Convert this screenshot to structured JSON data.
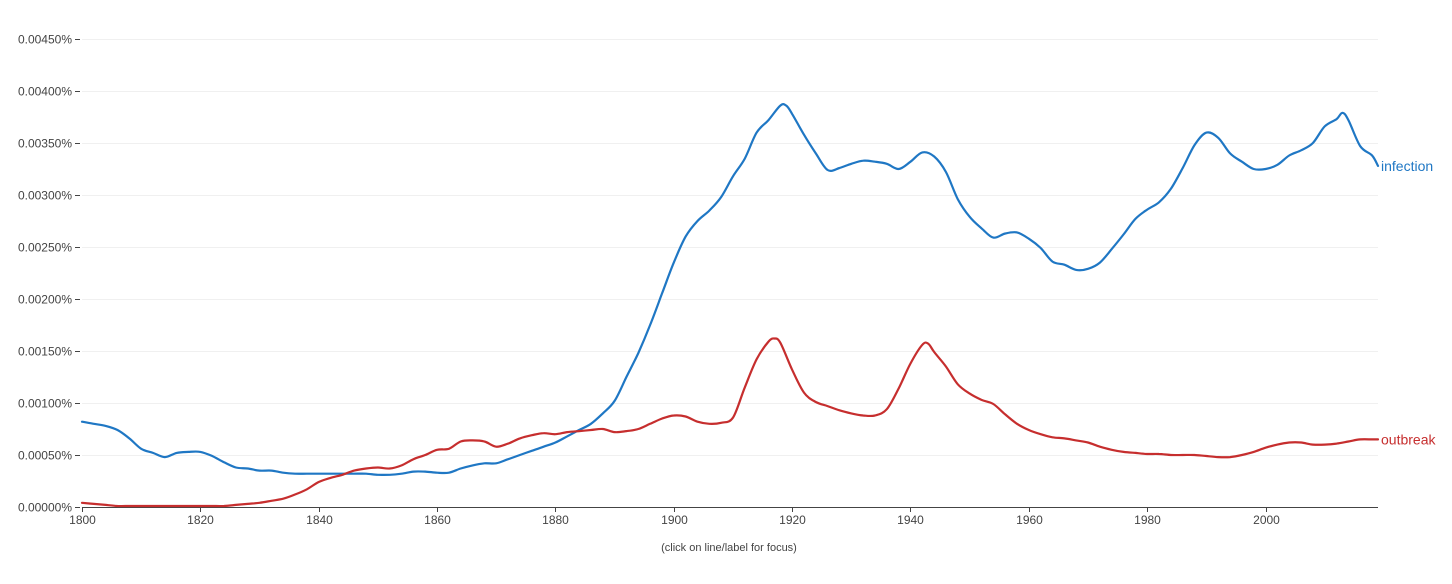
{
  "chart_data": {
    "type": "line",
    "x_range": [
      1800,
      2019
    ],
    "ylim": [
      0,
      0.0045
    ],
    "y_unit": "%",
    "y_ticks": [
      {
        "value": 0.0,
        "label": "0.00000%"
      },
      {
        "value": 0.0005,
        "label": "0.00050%"
      },
      {
        "value": 0.001,
        "label": "0.00100%"
      },
      {
        "value": 0.0015,
        "label": "0.00150%"
      },
      {
        "value": 0.002,
        "label": "0.00200%"
      },
      {
        "value": 0.0025,
        "label": "0.00250%"
      },
      {
        "value": 0.003,
        "label": "0.00300%"
      },
      {
        "value": 0.0035,
        "label": "0.00350%"
      },
      {
        "value": 0.004,
        "label": "0.00400%"
      },
      {
        "value": 0.0045,
        "label": "0.00450%"
      }
    ],
    "x_ticks": [
      {
        "value": 1800,
        "label": "1800"
      },
      {
        "value": 1820,
        "label": "1820"
      },
      {
        "value": 1840,
        "label": "1840"
      },
      {
        "value": 1860,
        "label": "1860"
      },
      {
        "value": 1880,
        "label": "1880"
      },
      {
        "value": 1900,
        "label": "1900"
      },
      {
        "value": 1920,
        "label": "1920"
      },
      {
        "value": 1940,
        "label": "1940"
      },
      {
        "value": 1960,
        "label": "1960"
      },
      {
        "value": 1980,
        "label": "1980"
      },
      {
        "value": 2000,
        "label": "2000"
      }
    ],
    "grid": true,
    "footnote": "(click on line/label for focus)",
    "series": [
      {
        "name": "infection",
        "color": "#1f77c4",
        "points": [
          [
            1800,
            0.00082
          ],
          [
            1802,
            0.0008
          ],
          [
            1804,
            0.00078
          ],
          [
            1806,
            0.00074
          ],
          [
            1808,
            0.00066
          ],
          [
            1810,
            0.00056
          ],
          [
            1812,
            0.00052
          ],
          [
            1814,
            0.00048
          ],
          [
            1816,
            0.00052
          ],
          [
            1818,
            0.00053
          ],
          [
            1820,
            0.00053
          ],
          [
            1822,
            0.00049
          ],
          [
            1824,
            0.00043
          ],
          [
            1826,
            0.00038
          ],
          [
            1828,
            0.00037
          ],
          [
            1830,
            0.00035
          ],
          [
            1832,
            0.00035
          ],
          [
            1834,
            0.00033
          ],
          [
            1836,
            0.00032
          ],
          [
            1838,
            0.00032
          ],
          [
            1840,
            0.00032
          ],
          [
            1842,
            0.00032
          ],
          [
            1844,
            0.00032
          ],
          [
            1846,
            0.00032
          ],
          [
            1848,
            0.00032
          ],
          [
            1850,
            0.00031
          ],
          [
            1852,
            0.00031
          ],
          [
            1854,
            0.00032
          ],
          [
            1856,
            0.00034
          ],
          [
            1858,
            0.00034
          ],
          [
            1860,
            0.00033
          ],
          [
            1862,
            0.00033
          ],
          [
            1864,
            0.00037
          ],
          [
            1866,
            0.0004
          ],
          [
            1868,
            0.00042
          ],
          [
            1870,
            0.00042
          ],
          [
            1872,
            0.00046
          ],
          [
            1874,
            0.0005
          ],
          [
            1876,
            0.00054
          ],
          [
            1878,
            0.00058
          ],
          [
            1880,
            0.00062
          ],
          [
            1882,
            0.00068
          ],
          [
            1884,
            0.00074
          ],
          [
            1886,
            0.0008
          ],
          [
            1888,
            0.0009
          ],
          [
            1890,
            0.00102
          ],
          [
            1892,
            0.00125
          ],
          [
            1894,
            0.00148
          ],
          [
            1896,
            0.00175
          ],
          [
            1898,
            0.00205
          ],
          [
            1900,
            0.00235
          ],
          [
            1902,
            0.0026
          ],
          [
            1904,
            0.00275
          ],
          [
            1906,
            0.00285
          ],
          [
            1908,
            0.00298
          ],
          [
            1910,
            0.00318
          ],
          [
            1912,
            0.00335
          ],
          [
            1914,
            0.0036
          ],
          [
            1916,
            0.00372
          ],
          [
            1918,
            0.00386
          ],
          [
            1919,
            0.00386
          ],
          [
            1920,
            0.00378
          ],
          [
            1922,
            0.00358
          ],
          [
            1924,
            0.0034
          ],
          [
            1926,
            0.00324
          ],
          [
            1928,
            0.00326
          ],
          [
            1930,
            0.0033
          ],
          [
            1932,
            0.00333
          ],
          [
            1934,
            0.00332
          ],
          [
            1936,
            0.0033
          ],
          [
            1938,
            0.00325
          ],
          [
            1940,
            0.00332
          ],
          [
            1942,
            0.00341
          ],
          [
            1944,
            0.00337
          ],
          [
            1946,
            0.00322
          ],
          [
            1948,
            0.00296
          ],
          [
            1950,
            0.00279
          ],
          [
            1952,
            0.00268
          ],
          [
            1954,
            0.00259
          ],
          [
            1956,
            0.00263
          ],
          [
            1958,
            0.00264
          ],
          [
            1960,
            0.00258
          ],
          [
            1962,
            0.00249
          ],
          [
            1964,
            0.00236
          ],
          [
            1966,
            0.00233
          ],
          [
            1968,
            0.00228
          ],
          [
            1970,
            0.00229
          ],
          [
            1972,
            0.00235
          ],
          [
            1974,
            0.00248
          ],
          [
            1976,
            0.00262
          ],
          [
            1978,
            0.00277
          ],
          [
            1980,
            0.00286
          ],
          [
            1982,
            0.00293
          ],
          [
            1984,
            0.00306
          ],
          [
            1986,
            0.00326
          ],
          [
            1988,
            0.00348
          ],
          [
            1990,
            0.0036
          ],
          [
            1992,
            0.00355
          ],
          [
            1994,
            0.0034
          ],
          [
            1996,
            0.00332
          ],
          [
            1998,
            0.00325
          ],
          [
            2000,
            0.00325
          ],
          [
            2002,
            0.00329
          ],
          [
            2004,
            0.00338
          ],
          [
            2006,
            0.00343
          ],
          [
            2008,
            0.0035
          ],
          [
            2010,
            0.00366
          ],
          [
            2012,
            0.00373
          ],
          [
            2013,
            0.00379
          ],
          [
            2014,
            0.00372
          ],
          [
            2016,
            0.00347
          ],
          [
            2018,
            0.00338
          ],
          [
            2019,
            0.00328
          ]
        ]
      },
      {
        "name": "outbreak",
        "color": "#c62e2e",
        "points": [
          [
            1800,
            4e-05
          ],
          [
            1802,
            3e-05
          ],
          [
            1804,
            2e-05
          ],
          [
            1806,
            1e-05
          ],
          [
            1808,
            1e-05
          ],
          [
            1810,
            1e-05
          ],
          [
            1812,
            1e-05
          ],
          [
            1814,
            1e-05
          ],
          [
            1816,
            1e-05
          ],
          [
            1818,
            1e-05
          ],
          [
            1820,
            1e-05
          ],
          [
            1822,
            1e-05
          ],
          [
            1824,
            1e-05
          ],
          [
            1826,
            2e-05
          ],
          [
            1828,
            3e-05
          ],
          [
            1830,
            4e-05
          ],
          [
            1832,
            6e-05
          ],
          [
            1834,
            8e-05
          ],
          [
            1836,
            0.00012
          ],
          [
            1838,
            0.00017
          ],
          [
            1840,
            0.00024
          ],
          [
            1842,
            0.00028
          ],
          [
            1844,
            0.00031
          ],
          [
            1846,
            0.00035
          ],
          [
            1848,
            0.00037
          ],
          [
            1850,
            0.00038
          ],
          [
            1852,
            0.00037
          ],
          [
            1854,
            0.0004
          ],
          [
            1856,
            0.00046
          ],
          [
            1858,
            0.0005
          ],
          [
            1860,
            0.00055
          ],
          [
            1862,
            0.00056
          ],
          [
            1864,
            0.00063
          ],
          [
            1866,
            0.00064
          ],
          [
            1868,
            0.00063
          ],
          [
            1870,
            0.00058
          ],
          [
            1872,
            0.00061
          ],
          [
            1874,
            0.00066
          ],
          [
            1876,
            0.00069
          ],
          [
            1878,
            0.00071
          ],
          [
            1880,
            0.0007
          ],
          [
            1882,
            0.00072
          ],
          [
            1884,
            0.00073
          ],
          [
            1886,
            0.00074
          ],
          [
            1888,
            0.00075
          ],
          [
            1890,
            0.00072
          ],
          [
            1892,
            0.00073
          ],
          [
            1894,
            0.00075
          ],
          [
            1896,
            0.0008
          ],
          [
            1898,
            0.00085
          ],
          [
            1900,
            0.00088
          ],
          [
            1902,
            0.00087
          ],
          [
            1904,
            0.00082
          ],
          [
            1906,
            0.0008
          ],
          [
            1908,
            0.00081
          ],
          [
            1910,
            0.00086
          ],
          [
            1912,
            0.00115
          ],
          [
            1914,
            0.00142
          ],
          [
            1916,
            0.00159
          ],
          [
            1917,
            0.00162
          ],
          [
            1918,
            0.00158
          ],
          [
            1920,
            0.00132
          ],
          [
            1922,
            0.0011
          ],
          [
            1924,
            0.00101
          ],
          [
            1926,
            0.00097
          ],
          [
            1928,
            0.00093
          ],
          [
            1930,
            0.0009
          ],
          [
            1932,
            0.00088
          ],
          [
            1934,
            0.00088
          ],
          [
            1936,
            0.00094
          ],
          [
            1938,
            0.00114
          ],
          [
            1940,
            0.00138
          ],
          [
            1942,
            0.00156
          ],
          [
            1943,
            0.00157
          ],
          [
            1944,
            0.00149
          ],
          [
            1946,
            0.00135
          ],
          [
            1948,
            0.00118
          ],
          [
            1950,
            0.00109
          ],
          [
            1952,
            0.00103
          ],
          [
            1954,
            0.00099
          ],
          [
            1956,
            0.00089
          ],
          [
            1958,
            0.0008
          ],
          [
            1960,
            0.00074
          ],
          [
            1962,
            0.0007
          ],
          [
            1964,
            0.00067
          ],
          [
            1966,
            0.00066
          ],
          [
            1968,
            0.00064
          ],
          [
            1970,
            0.00062
          ],
          [
            1972,
            0.00058
          ],
          [
            1974,
            0.00055
          ],
          [
            1976,
            0.00053
          ],
          [
            1978,
            0.00052
          ],
          [
            1980,
            0.00051
          ],
          [
            1982,
            0.00051
          ],
          [
            1984,
            0.0005
          ],
          [
            1986,
            0.0005
          ],
          [
            1988,
            0.0005
          ],
          [
            1990,
            0.00049
          ],
          [
            1992,
            0.00048
          ],
          [
            1994,
            0.00048
          ],
          [
            1996,
            0.0005
          ],
          [
            1998,
            0.00053
          ],
          [
            2000,
            0.00057
          ],
          [
            2002,
            0.0006
          ],
          [
            2004,
            0.00062
          ],
          [
            2006,
            0.00062
          ],
          [
            2008,
            0.0006
          ],
          [
            2010,
            0.0006
          ],
          [
            2012,
            0.00061
          ],
          [
            2014,
            0.00063
          ],
          [
            2016,
            0.00065
          ],
          [
            2018,
            0.00065
          ],
          [
            2019,
            0.00065
          ]
        ]
      }
    ]
  }
}
